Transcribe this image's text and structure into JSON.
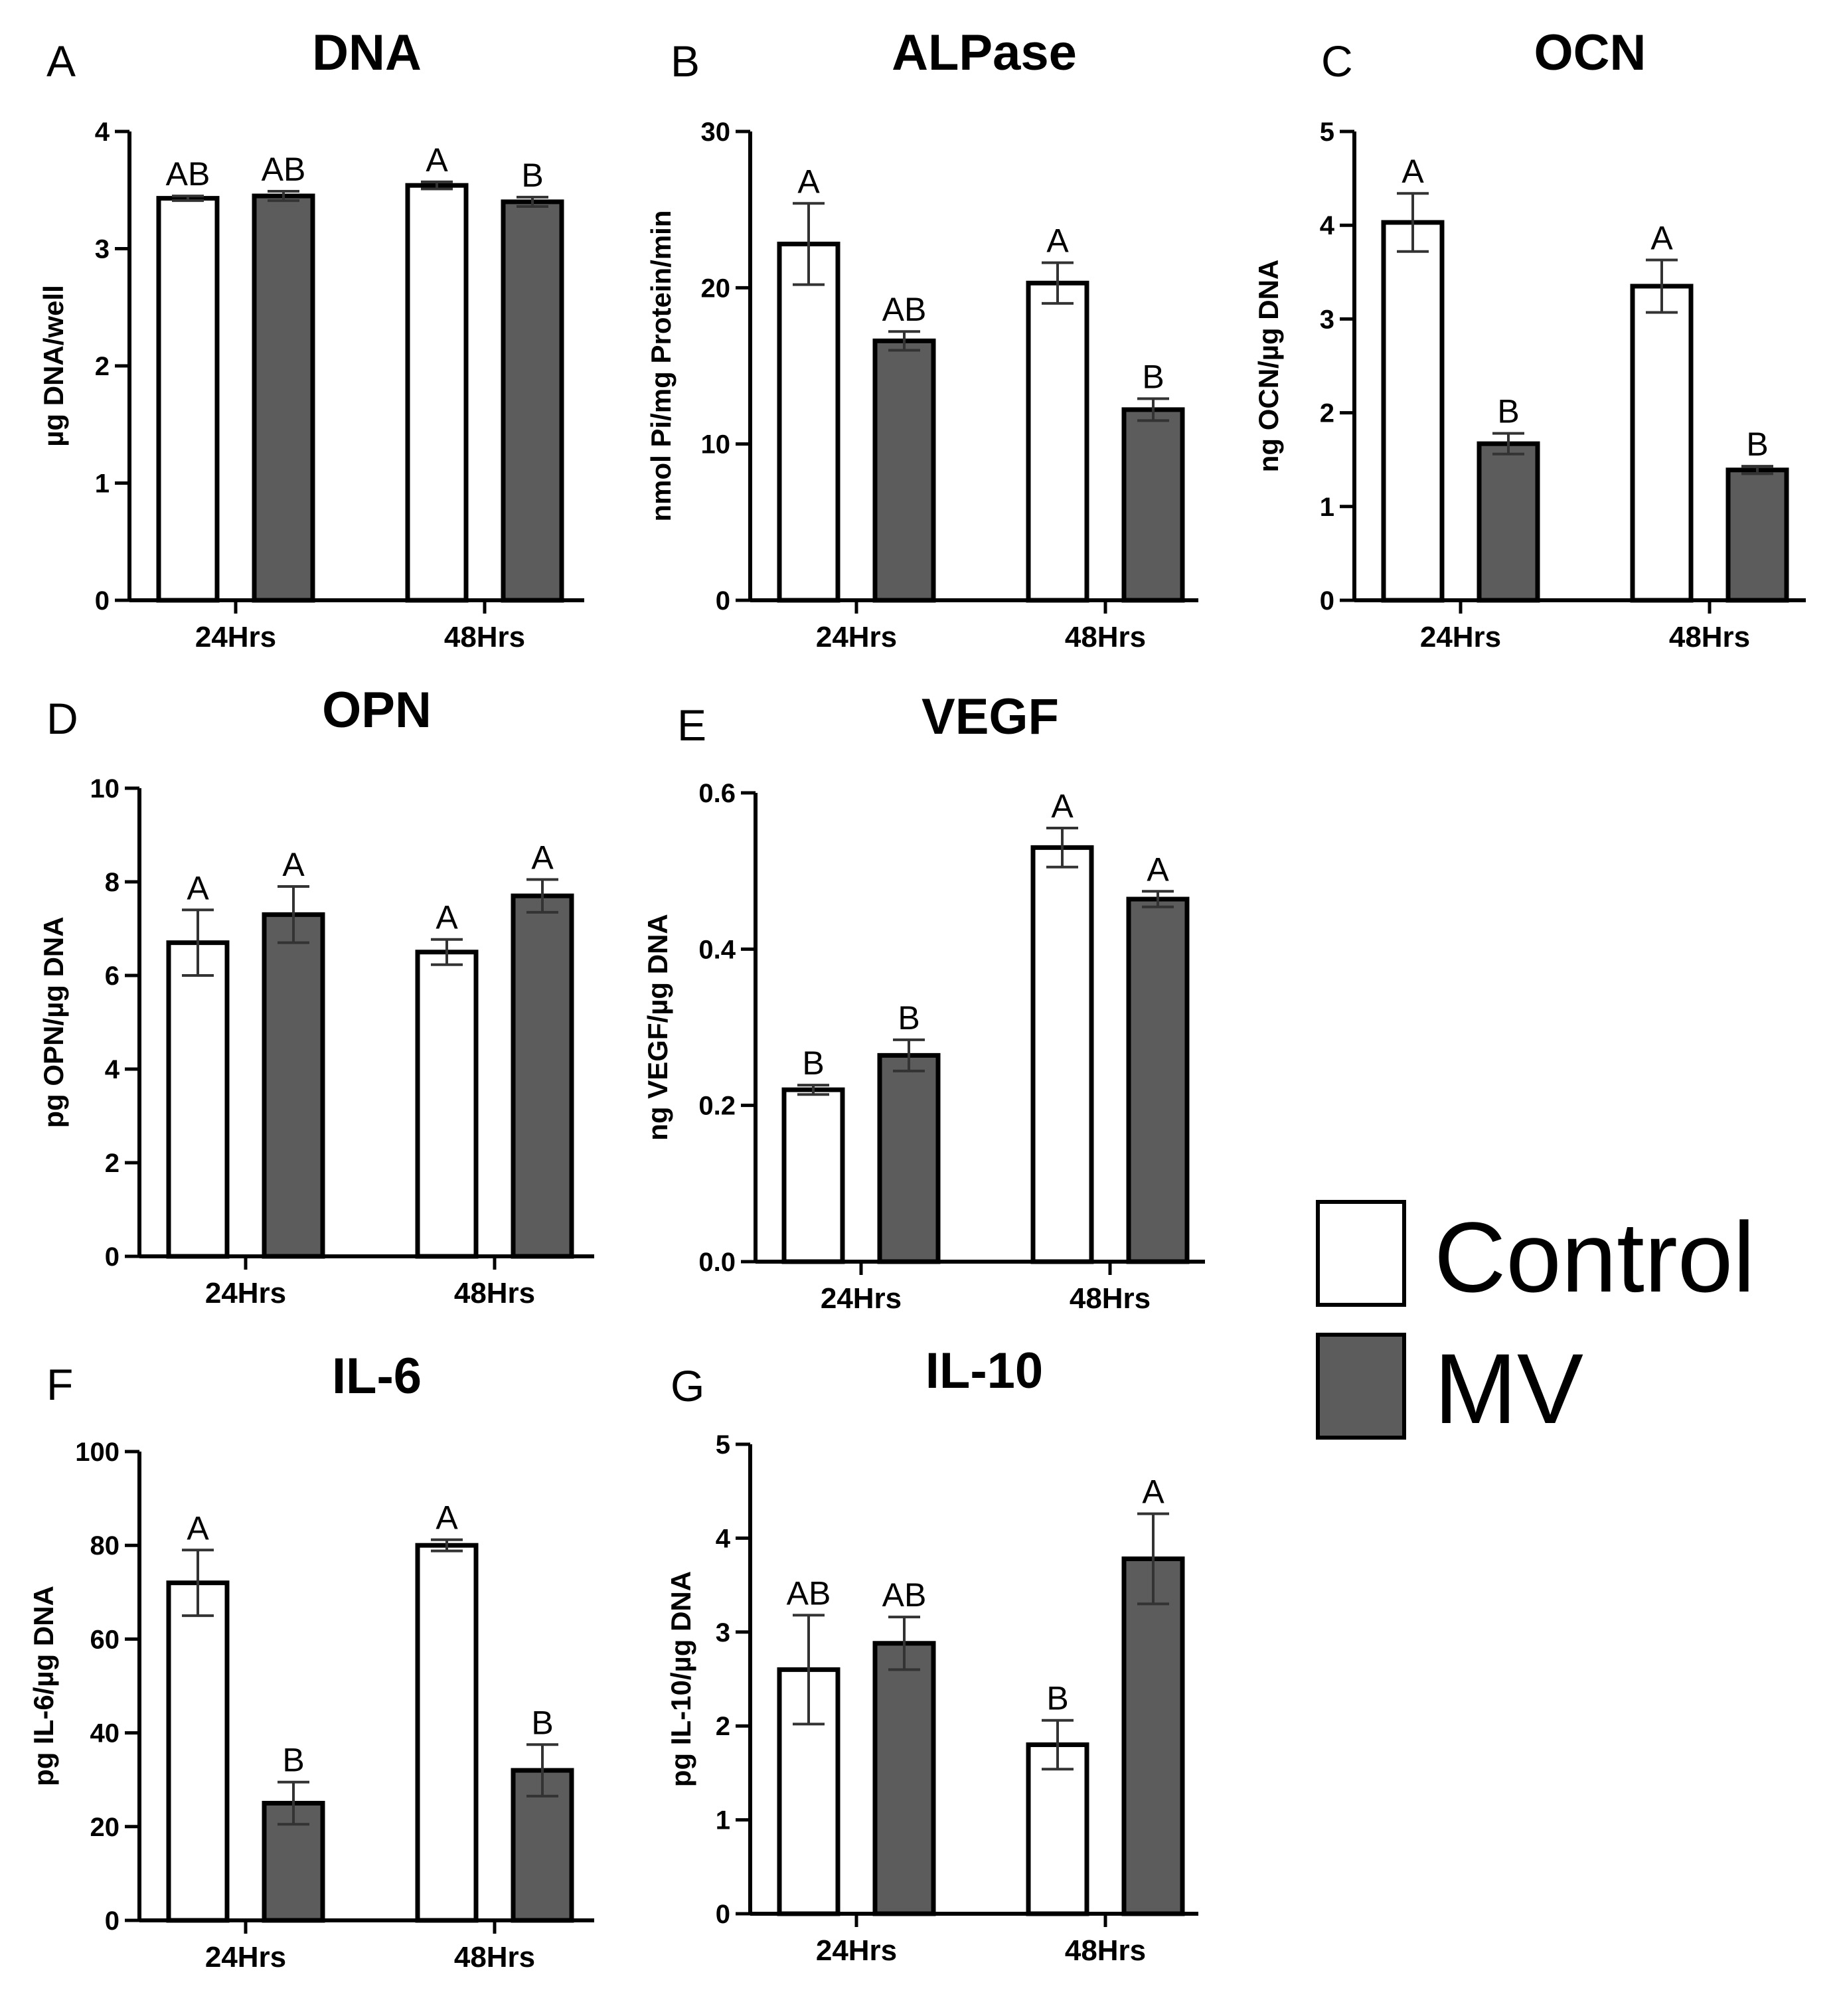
{
  "colors": {
    "control": "#ffffff",
    "mv": "#5c5c5c",
    "axis": "#000000",
    "error": "#333333"
  },
  "legend": {
    "items": [
      {
        "label": "Control",
        "series": "control"
      },
      {
        "label": "MV",
        "series": "mv"
      }
    ]
  },
  "chart_data": [
    {
      "id": "A",
      "type": "bar",
      "panel_label": "A",
      "title": "DNA",
      "ylabel": "µg DNA/well",
      "categories": [
        "24Hrs",
        "48Hrs"
      ],
      "ylim": [
        0,
        4
      ],
      "yticks": [
        "0",
        "1",
        "2",
        "3",
        "4"
      ],
      "series": [
        {
          "name": "Control",
          "values": [
            3.43,
            3.54
          ],
          "errors": [
            0.02,
            0.03
          ],
          "letters": [
            "AB",
            "A"
          ]
        },
        {
          "name": "MV",
          "values": [
            3.45,
            3.4
          ],
          "errors": [
            0.04,
            0.04
          ],
          "letters": [
            "AB",
            "B"
          ]
        }
      ]
    },
    {
      "id": "B",
      "type": "bar",
      "panel_label": "B",
      "title": "ALPase",
      "ylabel": "nmol Pi/mg Protein/min",
      "categories": [
        "24Hrs",
        "48Hrs"
      ],
      "ylim": [
        0,
        30
      ],
      "yticks": [
        "0",
        "10",
        "20",
        "30"
      ],
      "series": [
        {
          "name": "Control",
          "values": [
            22.8,
            20.3
          ],
          "errors": [
            2.6,
            1.3
          ],
          "letters": [
            "A",
            "A"
          ]
        },
        {
          "name": "MV",
          "values": [
            16.6,
            12.2
          ],
          "errors": [
            0.6,
            0.7
          ],
          "letters": [
            "AB",
            "B"
          ]
        }
      ]
    },
    {
      "id": "C",
      "type": "bar",
      "panel_label": "C",
      "title": "OCN",
      "ylabel": "ng OCN/µg DNA",
      "categories": [
        "24Hrs",
        "48Hrs"
      ],
      "ylim": [
        0,
        5
      ],
      "yticks": [
        "0",
        "1",
        "2",
        "3",
        "4",
        "5"
      ],
      "series": [
        {
          "name": "Control",
          "values": [
            4.03,
            3.35
          ],
          "errors": [
            0.31,
            0.28
          ],
          "letters": [
            "A",
            "A"
          ]
        },
        {
          "name": "MV",
          "values": [
            1.67,
            1.39
          ],
          "errors": [
            0.11,
            0.04
          ],
          "letters": [
            "B",
            "B"
          ]
        }
      ]
    },
    {
      "id": "D",
      "type": "bar",
      "panel_label": "D",
      "title": "OPN",
      "ylabel": "pg OPN/µg DNA",
      "categories": [
        "24Hrs",
        "48Hrs"
      ],
      "ylim": [
        0,
        10
      ],
      "yticks": [
        "0",
        "2",
        "4",
        "6",
        "8",
        "10"
      ],
      "series": [
        {
          "name": "Control",
          "values": [
            6.7,
            6.5
          ],
          "errors": [
            0.7,
            0.27
          ],
          "letters": [
            "A",
            "A"
          ]
        },
        {
          "name": "MV",
          "values": [
            7.3,
            7.7
          ],
          "errors": [
            0.6,
            0.35
          ],
          "letters": [
            "A",
            "A"
          ]
        }
      ]
    },
    {
      "id": "E",
      "type": "bar",
      "panel_label": "E",
      "title": "VEGF",
      "ylabel": "ng VEGF/µg DNA",
      "categories": [
        "24Hrs",
        "48Hrs"
      ],
      "ylim": [
        0,
        0.6
      ],
      "yticks": [
        "0.0",
        "0.2",
        "0.4",
        "0.6"
      ],
      "series": [
        {
          "name": "Control",
          "values": [
            0.22,
            0.53
          ],
          "errors": [
            0.006,
            0.025
          ],
          "letters": [
            "B",
            "A"
          ]
        },
        {
          "name": "MV",
          "values": [
            0.264,
            0.464
          ],
          "errors": [
            0.02,
            0.01
          ],
          "letters": [
            "B",
            "A"
          ]
        }
      ]
    },
    {
      "id": "F",
      "type": "bar",
      "panel_label": "F",
      "title": "IL-6",
      "ylabel": "pg IL-6/µg DNA",
      "categories": [
        "24Hrs",
        "48Hrs"
      ],
      "ylim": [
        0,
        100
      ],
      "yticks": [
        "0",
        "20",
        "40",
        "60",
        "80",
        "100"
      ],
      "series": [
        {
          "name": "Control",
          "values": [
            72,
            80
          ],
          "errors": [
            7,
            1.2
          ],
          "letters": [
            "A",
            "A"
          ]
        },
        {
          "name": "MV",
          "values": [
            25,
            32
          ],
          "errors": [
            4.5,
            5.5
          ],
          "letters": [
            "B",
            "B"
          ]
        }
      ]
    },
    {
      "id": "G",
      "type": "bar",
      "panel_label": "G",
      "title": "IL-10",
      "ylabel": "pg IL-10/µg DNA",
      "categories": [
        "24Hrs",
        "48Hrs"
      ],
      "ylim": [
        0,
        5
      ],
      "yticks": [
        "0",
        "1",
        "2",
        "3",
        "4",
        "5"
      ],
      "series": [
        {
          "name": "Control",
          "values": [
            2.6,
            1.8
          ],
          "errors": [
            0.58,
            0.26
          ],
          "letters": [
            "AB",
            "B"
          ]
        },
        {
          "name": "MV",
          "values": [
            2.88,
            3.78
          ],
          "errors": [
            0.28,
            0.48
          ],
          "letters": [
            "AB",
            "A"
          ]
        }
      ]
    }
  ]
}
